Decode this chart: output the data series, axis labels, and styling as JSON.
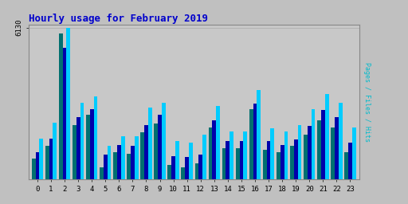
{
  "title": "Hourly usage for February 2019",
  "ylabel": "Pages / Files / Hits",
  "hours": [
    0,
    1,
    2,
    3,
    4,
    5,
    6,
    7,
    8,
    9,
    10,
    11,
    12,
    13,
    14,
    15,
    16,
    17,
    18,
    19,
    20,
    21,
    22,
    23
  ],
  "pages": [
    850,
    1350,
    5900,
    2200,
    2600,
    480,
    1100,
    1050,
    1900,
    2250,
    600,
    500,
    650,
    2100,
    1250,
    1250,
    2850,
    1200,
    1100,
    1350,
    1800,
    2400,
    2100,
    1100
  ],
  "files": [
    1100,
    1650,
    5300,
    2500,
    2850,
    1000,
    1400,
    1350,
    2200,
    2600,
    950,
    900,
    1000,
    2400,
    1550,
    1550,
    3050,
    1550,
    1400,
    1600,
    2150,
    2800,
    2500,
    1500
  ],
  "hits": [
    1650,
    2300,
    6130,
    3100,
    3350,
    1350,
    1750,
    1750,
    2900,
    3100,
    1550,
    1500,
    1800,
    2950,
    1950,
    1950,
    3600,
    2050,
    1950,
    2200,
    2850,
    3450,
    3100,
    2100
  ],
  "color_pages": "#007070",
  "color_files": "#0000AA",
  "color_hits": "#00CCFF",
  "ylim_max": 6130,
  "ytick_label": "6130",
  "bg_outer": "#C0C0C0",
  "bg_plot": "#C8C8C8",
  "title_color": "#0000CC",
  "ylabel_color": "#00BBCC",
  "bar_width": 0.28
}
